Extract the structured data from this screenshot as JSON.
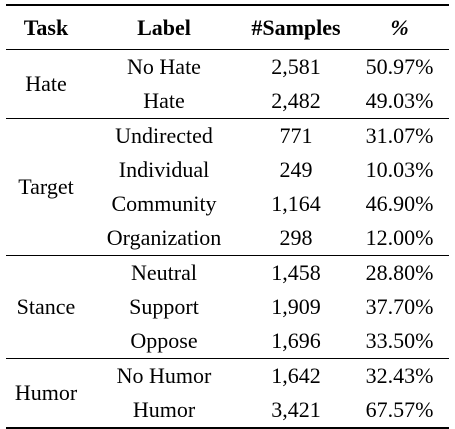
{
  "header": {
    "task": "Task",
    "label": "Label",
    "samples": "#Samples",
    "percent": "%"
  },
  "groups": [
    {
      "task": "Hate",
      "rows": [
        {
          "label": "No Hate",
          "samples": "2,581",
          "percent": "50.97%"
        },
        {
          "label": "Hate",
          "samples": "2,482",
          "percent": "49.03%"
        }
      ]
    },
    {
      "task": "Target",
      "rows": [
        {
          "label": "Undirected",
          "samples": "771",
          "percent": "31.07%"
        },
        {
          "label": "Individual",
          "samples": "249",
          "percent": "10.03%"
        },
        {
          "label": "Community",
          "samples": "1,164",
          "percent": "46.90%"
        },
        {
          "label": "Organization",
          "samples": "298",
          "percent": "12.00%"
        }
      ]
    },
    {
      "task": "Stance",
      "rows": [
        {
          "label": "Neutral",
          "samples": "1,458",
          "percent": "28.80%"
        },
        {
          "label": "Support",
          "samples": "1,909",
          "percent": "37.70%"
        },
        {
          "label": "Oppose",
          "samples": "1,696",
          "percent": "33.50%"
        }
      ]
    },
    {
      "task": "Humor",
      "rows": [
        {
          "label": "No Humor",
          "samples": "1,642",
          "percent": "32.43%"
        },
        {
          "label": "Humor",
          "samples": "3,421",
          "percent": "67.57%"
        }
      ]
    }
  ]
}
